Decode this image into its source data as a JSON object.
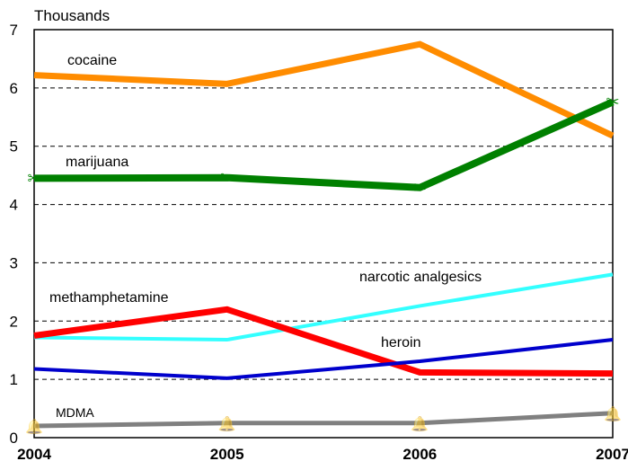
{
  "chart_data": {
    "type": "line",
    "ylabel": "Thousands",
    "x": [
      "2004",
      "2005",
      "2006",
      "2007"
    ],
    "ylim": [
      0,
      7
    ],
    "yticks": [
      "0",
      "1",
      "2",
      "3",
      "4",
      "5",
      "6",
      "7"
    ],
    "grid": "horizontal dashed",
    "series": [
      {
        "name": "cocaine",
        "values": [
          6.22,
          6.07,
          6.75,
          5.18
        ],
        "color": "#ff8c00",
        "marker": "none"
      },
      {
        "name": "marijuana",
        "values": [
          4.45,
          4.46,
          4.29,
          5.76
        ],
        "color": "#008000",
        "marker": "scissors"
      },
      {
        "name": "narcotic analgesics",
        "values": [
          1.72,
          1.68,
          2.26,
          2.8
        ],
        "color": "#33ffff",
        "marker": "none"
      },
      {
        "name": "methamphetamine",
        "values": [
          1.75,
          2.2,
          1.12,
          1.1
        ],
        "color": "#ff0000",
        "marker": "none"
      },
      {
        "name": "heroin",
        "values": [
          1.18,
          1.02,
          1.31,
          1.68
        ],
        "color": "#0000cc",
        "marker": "none"
      },
      {
        "name": "MDMA",
        "values": [
          0.2,
          0.25,
          0.25,
          0.42
        ],
        "color": "#808080",
        "marker": "bell"
      }
    ]
  }
}
